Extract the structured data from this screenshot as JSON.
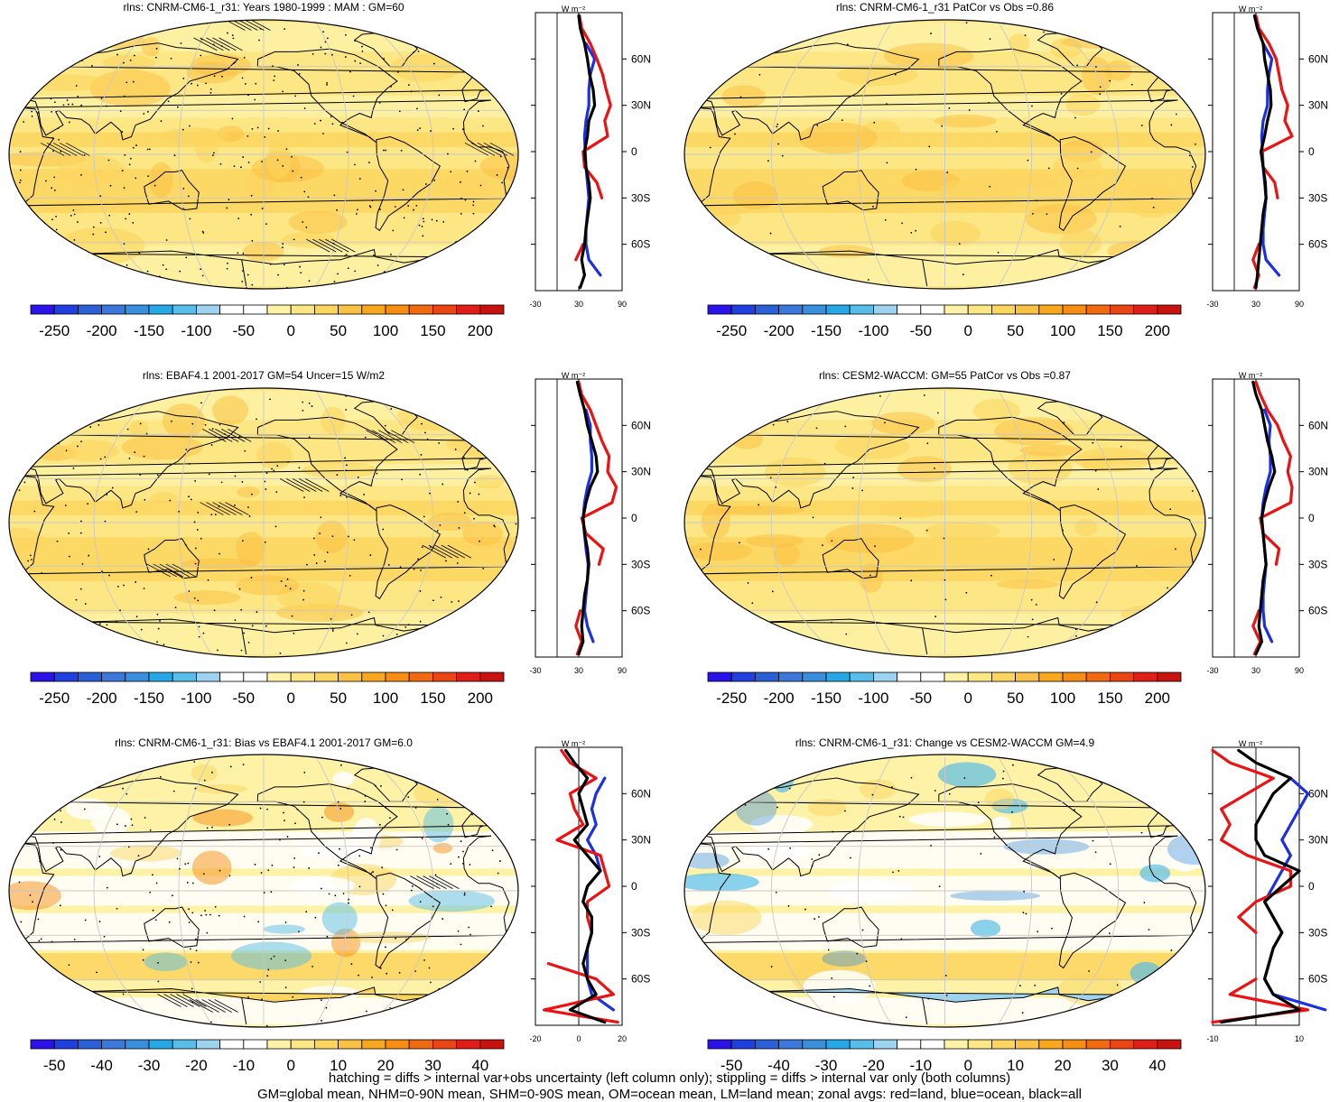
{
  "footnotes": {
    "line1": "hatching = diffs > internal var+obs uncertainty (left column only); stippling = diffs > internal var only (both columns)",
    "line2": "GM=global mean, NHM=0-90N mean, SHM=0-90S mean, OM=ocean mean, LM=land mean; zonal avgs: red=land, blue=ocean, black=all"
  },
  "zonal_unit": "W m⁻²",
  "lat_labels": [
    "60N",
    "30N",
    "0",
    "30S",
    "60S"
  ],
  "colors": {
    "land": "#ee1111",
    "ocean": "#1a2fe6",
    "all": "#000000"
  },
  "scales": {
    "abs": {
      "levels": [
        -250,
        -200,
        -150,
        -100,
        -50,
        0,
        50,
        100,
        150,
        200,
        250
      ],
      "labels": [
        "-250",
        "-200",
        "-150",
        "-100",
        "-50",
        "0",
        "50",
        "100",
        "150",
        "200",
        "250"
      ],
      "colors": [
        "#2b12e8",
        "#1f3fe0",
        "#2a5fd8",
        "#3c78dc",
        "#3a8ede",
        "#27a8e6",
        "#58bde8",
        "#9dd3ef",
        "#ffffff",
        "#ffffff",
        "#fdf2a6",
        "#fde684",
        "#fcd55e",
        "#fbc144",
        "#f9a81e",
        "#f78e13",
        "#f26a10",
        "#eb4513",
        "#e11d17",
        "#c8120f"
      ]
    },
    "diff": {
      "levels": [
        -50,
        -40,
        -30,
        -20,
        -10,
        0,
        10,
        20,
        30,
        40,
        50
      ],
      "labels": [
        "-50",
        "-40",
        "-30",
        "-20",
        "-10",
        "0",
        "10",
        "20",
        "30",
        "40",
        "50"
      ],
      "colors": [
        "#2b12e8",
        "#1f3fe0",
        "#2a5fd8",
        "#3c78dc",
        "#3a8ede",
        "#27a8e6",
        "#58bde8",
        "#9dd3ef",
        "#ffffff",
        "#ffffff",
        "#fdf2a6",
        "#fde684",
        "#fcd55e",
        "#fbc144",
        "#f9a81e",
        "#f78e13",
        "#f26a10",
        "#eb4513",
        "#e11d17",
        "#c8120f"
      ]
    }
  },
  "chart_data": [
    {
      "type": "heatmap",
      "id": "p1",
      "title": "rlns: CNRM-CM6-1_r31: Years 1980-1999 : MAM : GM=60",
      "scale": "abs",
      "zonal": {
        "xticks": [
          "-30",
          "30",
          "90"
        ],
        "xlim": [
          -30,
          90
        ],
        "ylim": [
          -90,
          90
        ],
        "lat": [
          -88,
          -80,
          -70,
          -60,
          -50,
          -40,
          -30,
          -20,
          -10,
          0,
          10,
          20,
          30,
          40,
          50,
          60,
          70,
          80,
          88
        ],
        "all": [
          32,
          38,
          34,
          38,
          40,
          43,
          46,
          44,
          40,
          38,
          42,
          44,
          52,
          50,
          45,
          42,
          38,
          32,
          30
        ],
        "land": [
          30,
          null,
          26,
          36,
          null,
          null,
          62,
          55,
          38,
          36,
          70,
          66,
          74,
          68,
          63,
          55,
          46,
          34,
          31
        ],
        "ocean": [
          null,
          60,
          44,
          40,
          40,
          42,
          44,
          42,
          40,
          39,
          38,
          40,
          44,
          44,
          46,
          52,
          40,
          null,
          null
        ]
      }
    },
    {
      "type": "heatmap",
      "id": "p2",
      "title": "rlns: CNRM-CM6-1_r31 PatCor vs Obs =0.86",
      "scale": "abs",
      "zonal": {
        "xticks": [
          "-30",
          "30",
          "90"
        ],
        "xlim": [
          -30,
          90
        ],
        "ylim": [
          -90,
          90
        ],
        "lat": [
          -88,
          -80,
          -70,
          -60,
          -50,
          -40,
          -30,
          -20,
          -10,
          0,
          10,
          20,
          30,
          40,
          50,
          60,
          70,
          80,
          88
        ],
        "all": [
          30,
          32,
          34,
          36,
          38,
          40,
          44,
          43,
          40,
          37,
          42,
          46,
          51,
          50,
          46,
          42,
          40,
          32,
          28
        ],
        "land": [
          28,
          34,
          26,
          34,
          null,
          null,
          60,
          56,
          40,
          38,
          80,
          70,
          74,
          66,
          62,
          58,
          48,
          34,
          30
        ],
        "ocean": [
          null,
          62,
          44,
          40,
          40,
          42,
          44,
          42,
          40,
          39,
          38,
          40,
          46,
          46,
          48,
          52,
          40,
          null,
          null
        ]
      }
    },
    {
      "type": "heatmap",
      "id": "p3",
      "title": "rlns: EBAF4.1 2001-2017 GM=54 Uncer=15 W/m2",
      "scale": "abs",
      "zonal": {
        "xticks": [
          "-30",
          "30",
          "90"
        ],
        "xlim": [
          -30,
          90
        ],
        "ylim": [
          -90,
          90
        ],
        "lat": [
          -88,
          -80,
          -70,
          -60,
          -50,
          -40,
          -30,
          -20,
          -10,
          0,
          10,
          20,
          30,
          40,
          50,
          60,
          70,
          80,
          88
        ],
        "all": [
          30,
          36,
          34,
          36,
          38,
          42,
          44,
          42,
          38,
          36,
          40,
          46,
          56,
          54,
          48,
          42,
          38,
          32,
          28
        ],
        "land": [
          28,
          34,
          26,
          32,
          null,
          null,
          58,
          64,
          40,
          34,
          76,
          82,
          70,
          72,
          62,
          54,
          46,
          34,
          30
        ],
        "ocean": [
          null,
          50,
          42,
          38,
          40,
          42,
          43,
          40,
          38,
          36,
          38,
          42,
          48,
          48,
          46,
          46,
          40,
          null,
          null
        ]
      }
    },
    {
      "type": "heatmap",
      "id": "p4",
      "title": "rlns: CESM2-WACCM: GM=55 PatCor vs Obs =0.87",
      "scale": "abs",
      "zonal": {
        "xticks": [
          "-30",
          "30",
          "90"
        ],
        "xlim": [
          -30,
          90
        ],
        "ylim": [
          -90,
          90
        ],
        "lat": [
          -88,
          -80,
          -70,
          -60,
          -50,
          -40,
          -30,
          -20,
          -10,
          0,
          10,
          20,
          30,
          40,
          50,
          60,
          70,
          80,
          88
        ],
        "all": [
          30,
          38,
          34,
          36,
          38,
          40,
          44,
          42,
          40,
          38,
          42,
          48,
          56,
          52,
          46,
          42,
          38,
          30,
          26
        ],
        "land": [
          28,
          36,
          26,
          34,
          null,
          null,
          58,
          62,
          40,
          36,
          78,
          80,
          74,
          78,
          68,
          60,
          46,
          36,
          30
        ],
        "ocean": [
          null,
          52,
          42,
          40,
          40,
          42,
          44,
          42,
          40,
          38,
          40,
          44,
          50,
          50,
          48,
          50,
          42,
          null,
          null
        ]
      }
    },
    {
      "type": "heatmap",
      "id": "p5",
      "title": "rlns: CNRM-CM6-1_r31: Bias vs EBAF4.1 2001-2017 GM=6.0",
      "scale": "diff",
      "zonal": {
        "xticks": [
          "-20",
          "0",
          "20"
        ],
        "xlim": [
          -20,
          20
        ],
        "ylim": [
          -90,
          90
        ],
        "lat": [
          -88,
          -80,
          -70,
          -60,
          -50,
          -40,
          -30,
          -20,
          -10,
          0,
          10,
          20,
          30,
          40,
          50,
          60,
          70,
          80,
          88
        ],
        "all": [
          12,
          -4,
          8,
          4,
          2,
          4,
          6,
          6,
          2,
          4,
          10,
          4,
          -2,
          4,
          2,
          0,
          4,
          -2,
          -6
        ],
        "land": [
          18,
          -16,
          16,
          8,
          -14,
          null,
          6,
          4,
          4,
          14,
          12,
          10,
          -10,
          2,
          -2,
          -4,
          8,
          -4,
          -8
        ],
        "ocean": [
          null,
          16,
          6,
          4,
          4,
          4,
          6,
          6,
          2,
          4,
          10,
          8,
          4,
          8,
          6,
          8,
          12,
          null,
          null
        ]
      }
    },
    {
      "type": "heatmap",
      "id": "p6",
      "title": "rlns: CNRM-CM6-1_r31: Change vs CESM2-WACCM GM=4.9",
      "scale": "diff",
      "zonal": {
        "xticks": [
          "-10",
          "10"
        ],
        "xlim": [
          -10,
          10
        ],
        "ylim": [
          -90,
          90
        ],
        "lat": [
          -88,
          -80,
          -70,
          -60,
          -50,
          -40,
          -30,
          -20,
          -10,
          0,
          10,
          20,
          30,
          40,
          50,
          60,
          70,
          80,
          88
        ],
        "all": [
          -8,
          10,
          4,
          2,
          3,
          4,
          6,
          4,
          2,
          6,
          10,
          2,
          0,
          0,
          2,
          4,
          8,
          0,
          -4
        ],
        "land": [
          -10,
          12,
          -6,
          0,
          null,
          null,
          0,
          -4,
          0,
          8,
          8,
          -2,
          -8,
          -6,
          -8,
          -2,
          4,
          -6,
          -10
        ],
        "ocean": [
          null,
          16,
          4,
          2,
          3,
          4,
          6,
          4,
          2,
          4,
          6,
          8,
          6,
          8,
          10,
          12,
          8,
          null,
          null
        ]
      }
    }
  ]
}
